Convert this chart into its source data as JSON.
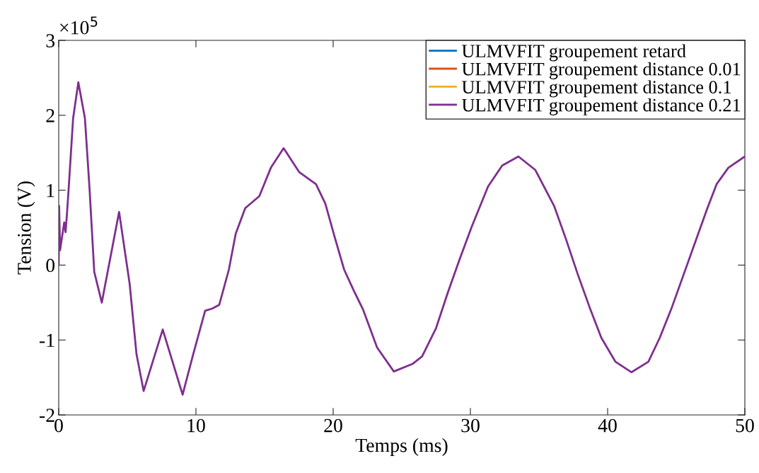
{
  "chart_data": {
    "type": "line",
    "xlabel": "Temps (ms)",
    "ylabel": "Tension (V)",
    "annotations": [
      "×10$^{5}$"
    ],
    "xlim": [
      0,
      50
    ],
    "xticks": [
      0,
      10,
      20,
      30,
      40,
      50
    ],
    "ylim": [
      -2,
      3
    ],
    "yticks": [
      -2,
      -1,
      0,
      1,
      2,
      3
    ],
    "grid": false,
    "legend": "top right",
    "marker": "none",
    "line_style": "solid",
    "x": [
      0,
      0.03,
      0.1,
      0.4,
      0.5,
      0.6,
      0.7,
      1.05,
      1.43,
      1.91,
      2.25,
      2.59,
      3.14,
      4.4,
      5.17,
      5.67,
      6.19,
      7.58,
      9.03,
      9.8,
      10.67,
      11.19,
      11.7,
      12.4,
      12.9,
      13.59,
      14.62,
      15.46,
      16.39,
      17.53,
      18.75,
      19.43,
      20.1,
      20.8,
      21.5,
      22.17,
      23.2,
      24.42,
      25.77,
      26.48,
      27.5,
      28.35,
      29.2,
      30.09,
      31.29,
      32.32,
      33.5,
      34.73,
      36.1,
      36.96,
      37.82,
      38.68,
      39.54,
      40.57,
      41.73,
      42.97,
      43.8,
      44.69,
      45.55,
      46.41,
      47.27,
      47.94,
      48.8,
      50
    ],
    "series": [
      {
        "name": "ULMVFIT groupement retard",
        "color": "#0072bd",
        "values": [
          null,
          null,
          null,
          null,
          null,
          null,
          null,
          null,
          null,
          null,
          null,
          null,
          null,
          null,
          null,
          null,
          null,
          null,
          null,
          null,
          null,
          null,
          null,
          null,
          null,
          null,
          null,
          null,
          null,
          null,
          null,
          null,
          null,
          null,
          null,
          null,
          null,
          null,
          null,
          null,
          null,
          null,
          null,
          null,
          null,
          null,
          null,
          null,
          null,
          null,
          null,
          null,
          null,
          null,
          null,
          null,
          null,
          null,
          null,
          null,
          null,
          null,
          null,
          null
        ]
      },
      {
        "name": "ULMVFIT groupement distance 0.01",
        "color": "#d95319",
        "values": [
          null,
          null,
          null,
          null,
          null,
          null,
          null,
          null,
          null,
          null,
          null,
          null,
          null,
          null,
          null,
          null,
          null,
          null,
          null,
          null,
          null,
          null,
          null,
          null,
          null,
          null,
          null,
          null,
          null,
          null,
          null,
          null,
          null,
          null,
          null,
          null,
          null,
          null,
          null,
          null,
          null,
          null,
          null,
          null,
          null,
          null,
          null,
          null,
          null,
          null,
          null,
          null,
          null,
          null,
          null,
          null,
          null,
          null,
          null,
          null,
          null,
          null,
          null,
          null
        ]
      },
      {
        "name": "ULMVFIT groupement distance 0.1",
        "color": "#edb120",
        "values": [
          null,
          null,
          null,
          null,
          null,
          null,
          null,
          null,
          null,
          null,
          null,
          null,
          null,
          null,
          null,
          null,
          null,
          null,
          null,
          null,
          null,
          null,
          null,
          null,
          null,
          null,
          null,
          null,
          null,
          null,
          null,
          null,
          null,
          null,
          null,
          null,
          null,
          null,
          null,
          null,
          null,
          null,
          null,
          null,
          null,
          null,
          null,
          null,
          null,
          null,
          null,
          null,
          null,
          null,
          null,
          null,
          null,
          null,
          null,
          null,
          null,
          null,
          null,
          null
        ]
      },
      {
        "name": "ULMVFIT groupement distance 0.21",
        "color": "#7e2f8e",
        "values": [
          0.01,
          0.79,
          0.2,
          0.57,
          0.44,
          0.68,
          0.95,
          1.96,
          2.44,
          1.96,
          1.01,
          -0.09,
          -0.5,
          0.71,
          -0.25,
          -1.19,
          -1.68,
          -0.86,
          -1.73,
          -1.19,
          -0.61,
          -0.58,
          -0.53,
          -0.06,
          0.42,
          0.76,
          0.92,
          1.3,
          1.56,
          1.24,
          1.08,
          0.82,
          0.38,
          -0.06,
          -0.34,
          -0.59,
          -1.1,
          -1.42,
          -1.32,
          -1.22,
          -0.84,
          -0.37,
          0.07,
          0.51,
          1.05,
          1.33,
          1.45,
          1.27,
          0.79,
          0.35,
          -0.12,
          -0.56,
          -0.97,
          -1.29,
          -1.43,
          -1.29,
          -0.97,
          -0.56,
          -0.12,
          0.32,
          0.76,
          1.08,
          1.3,
          1.45
        ]
      }
    ]
  }
}
